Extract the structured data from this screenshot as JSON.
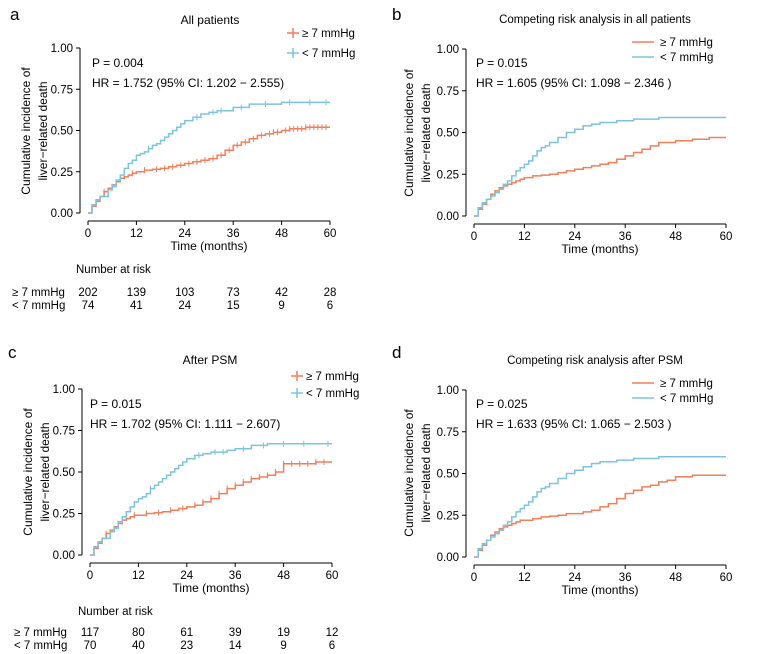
{
  "colors": {
    "high": "#F07F5A",
    "low": "#7EC3DD"
  },
  "risk_header": "Number at risk",
  "chart_data": [
    {
      "panel": "a",
      "type": "line",
      "title": "All patients",
      "xlabel": "Time (months)",
      "ylabel_lines": [
        "Cumulative incidence of",
        "liver−related death"
      ],
      "xlim": [
        0,
        60
      ],
      "ylim": [
        0,
        1
      ],
      "xticks": [
        "0",
        "12",
        "24",
        "36",
        "48",
        "60"
      ],
      "yticks": [
        "0.00",
        "0.25",
        "0.50",
        "0.75",
        "1.00"
      ],
      "p_text": "P = 0.004",
      "hr_text": "HR = 1.752  (95% CI: 1.202 − 2.555)",
      "legend_style": "marker",
      "legend_position": "top-right",
      "series": [
        {
          "name": "≥ 7 mmHg",
          "color_key": "high",
          "x": [
            0,
            1,
            2,
            3,
            4,
            5,
            6,
            7,
            8,
            9,
            10,
            11,
            12,
            14,
            16,
            18,
            20,
            22,
            24,
            26,
            28,
            30,
            32,
            34,
            36,
            38,
            40,
            42,
            44,
            46,
            48,
            50,
            52,
            54,
            56,
            58,
            60
          ],
          "y": [
            0,
            0.04,
            0.07,
            0.1,
            0.13,
            0.15,
            0.17,
            0.19,
            0.21,
            0.22,
            0.23,
            0.24,
            0.25,
            0.26,
            0.265,
            0.27,
            0.28,
            0.29,
            0.3,
            0.31,
            0.32,
            0.33,
            0.35,
            0.38,
            0.41,
            0.43,
            0.45,
            0.47,
            0.48,
            0.49,
            0.5,
            0.51,
            0.51,
            0.52,
            0.52,
            0.52,
            0.52
          ],
          "censor_x": [
            4,
            8,
            11,
            14,
            17,
            19,
            21,
            23,
            25,
            27,
            29,
            31,
            33,
            35,
            37,
            39,
            41,
            43,
            45,
            46,
            47,
            49,
            50,
            51,
            52,
            53,
            54,
            55,
            56,
            57,
            58,
            59
          ]
        },
        {
          "name": "< 7 mmHg",
          "color_key": "low",
          "x": [
            0,
            1,
            2,
            3,
            5,
            6,
            7,
            8,
            9,
            10,
            11,
            12,
            13,
            14,
            15,
            16,
            17,
            18,
            19,
            20,
            21,
            22,
            23,
            24,
            26,
            28,
            30,
            32,
            34,
            36,
            40,
            44,
            48,
            52,
            56,
            60
          ],
          "y": [
            0,
            0.05,
            0.08,
            0.1,
            0.14,
            0.16,
            0.2,
            0.23,
            0.27,
            0.3,
            0.32,
            0.35,
            0.36,
            0.37,
            0.39,
            0.41,
            0.42,
            0.44,
            0.46,
            0.48,
            0.5,
            0.52,
            0.54,
            0.56,
            0.58,
            0.6,
            0.61,
            0.62,
            0.62,
            0.64,
            0.66,
            0.66,
            0.67,
            0.67,
            0.67,
            0.67
          ],
          "censor_x": [
            6,
            15,
            27,
            31,
            33,
            38,
            44,
            50,
            55,
            59
          ]
        }
      ],
      "risk_table": [
        {
          "label": "≥ 7 mmHg",
          "values": [
            202,
            139,
            103,
            73,
            42,
            28
          ]
        },
        {
          "label": "< 7 mmHg",
          "values": [
            74,
            41,
            24,
            15,
            9,
            6
          ]
        }
      ]
    },
    {
      "panel": "b",
      "type": "line",
      "title": "Competing risk analysis in all patients",
      "xlabel": "Time (months)",
      "ylabel_lines": [
        "Cumulative incidence of",
        "liver−related death"
      ],
      "xlim": [
        0,
        60
      ],
      "ylim": [
        0,
        1
      ],
      "xticks": [
        "0",
        "12",
        "24",
        "36",
        "48",
        "60"
      ],
      "yticks": [
        "0.00",
        "0.25",
        "0.50",
        "0.75",
        "1.00"
      ],
      "p_text": "P = 0.015",
      "hr_text": "HR = 1.605  (95% CI: 1.098 − 2.346 )",
      "legend_style": "line",
      "legend_position": "top-right",
      "series": [
        {
          "name": "≥ 7 mmHg",
          "color_key": "high",
          "x": [
            0,
            1,
            2,
            3,
            4,
            5,
            6,
            7,
            8,
            9,
            10,
            11,
            12,
            14,
            16,
            18,
            20,
            22,
            24,
            26,
            28,
            30,
            32,
            34,
            36,
            38,
            40,
            42,
            44,
            48,
            52,
            56,
            60
          ],
          "y": [
            0,
            0.04,
            0.07,
            0.1,
            0.13,
            0.15,
            0.17,
            0.18,
            0.19,
            0.2,
            0.21,
            0.22,
            0.23,
            0.24,
            0.245,
            0.25,
            0.26,
            0.27,
            0.28,
            0.29,
            0.3,
            0.31,
            0.32,
            0.34,
            0.36,
            0.38,
            0.4,
            0.42,
            0.44,
            0.45,
            0.46,
            0.47,
            0.47
          ],
          "censor_x": []
        },
        {
          "name": "< 7 mmHg",
          "color_key": "low",
          "x": [
            0,
            1,
            2,
            3,
            4,
            5,
            6,
            7,
            8,
            9,
            10,
            11,
            12,
            13,
            14,
            15,
            16,
            17,
            18,
            20,
            22,
            24,
            26,
            28,
            30,
            34,
            38,
            42,
            44,
            48,
            52,
            56,
            60
          ],
          "y": [
            0,
            0.05,
            0.08,
            0.1,
            0.12,
            0.14,
            0.16,
            0.19,
            0.21,
            0.24,
            0.27,
            0.29,
            0.31,
            0.33,
            0.36,
            0.39,
            0.41,
            0.42,
            0.44,
            0.47,
            0.5,
            0.52,
            0.54,
            0.55,
            0.56,
            0.57,
            0.58,
            0.58,
            0.59,
            0.59,
            0.59,
            0.59,
            0.59
          ],
          "censor_x": []
        }
      ]
    },
    {
      "panel": "c",
      "type": "line",
      "title": "After PSM",
      "xlabel": "Time (months)",
      "ylabel_lines": [
        "Cumulative incidence of",
        "liver−related death"
      ],
      "xlim": [
        0,
        60
      ],
      "ylim": [
        0,
        1
      ],
      "xticks": [
        "0",
        "12",
        "24",
        "36",
        "48",
        "60"
      ],
      "yticks": [
        "0.00",
        "0.25",
        "0.50",
        "0.75",
        "1.00"
      ],
      "p_text": "P = 0.015",
      "hr_text": "HR = 1.702   (95% CI: 1.111 − 2.607)",
      "legend_style": "marker",
      "legend_position": "top-right",
      "series": [
        {
          "name": "≥ 7 mmHg",
          "color_key": "high",
          "x": [
            0,
            1,
            2,
            3,
            4,
            5,
            6,
            7,
            8,
            9,
            10,
            11,
            12,
            14,
            16,
            18,
            20,
            22,
            24,
            26,
            28,
            30,
            32,
            34,
            36,
            38,
            40,
            42,
            44,
            46,
            48,
            52,
            56,
            60
          ],
          "y": [
            0,
            0.04,
            0.07,
            0.1,
            0.13,
            0.15,
            0.17,
            0.19,
            0.21,
            0.22,
            0.23,
            0.24,
            0.24,
            0.25,
            0.255,
            0.26,
            0.27,
            0.28,
            0.29,
            0.3,
            0.32,
            0.34,
            0.37,
            0.4,
            0.42,
            0.44,
            0.46,
            0.47,
            0.48,
            0.5,
            0.55,
            0.55,
            0.56,
            0.56
          ],
          "censor_x": [
            4,
            8,
            11,
            14,
            17,
            20,
            23,
            26,
            28,
            30,
            32,
            34,
            36,
            38,
            40,
            42,
            44,
            46,
            48,
            50,
            52,
            54,
            56,
            58
          ]
        },
        {
          "name": "< 7 mmHg",
          "color_key": "low",
          "x": [
            0,
            1,
            2,
            3,
            5,
            6,
            7,
            8,
            9,
            10,
            11,
            12,
            13,
            14,
            15,
            16,
            17,
            18,
            19,
            20,
            21,
            22,
            23,
            24,
            26,
            28,
            30,
            34,
            36,
            40,
            44,
            48,
            52,
            56,
            60
          ],
          "y": [
            0,
            0.05,
            0.08,
            0.1,
            0.14,
            0.16,
            0.2,
            0.23,
            0.26,
            0.29,
            0.32,
            0.34,
            0.35,
            0.37,
            0.4,
            0.42,
            0.44,
            0.46,
            0.48,
            0.5,
            0.52,
            0.54,
            0.56,
            0.58,
            0.6,
            0.61,
            0.62,
            0.63,
            0.64,
            0.66,
            0.67,
            0.67,
            0.67,
            0.67,
            0.67
          ],
          "censor_x": [
            6,
            15,
            27,
            31,
            33,
            38,
            43,
            48,
            53,
            59
          ]
        }
      ],
      "risk_table": [
        {
          "label": "≥ 7 mmHg",
          "values": [
            117,
            80,
            61,
            39,
            19,
            12
          ]
        },
        {
          "label": "< 7 mmHg",
          "values": [
            70,
            40,
            23,
            14,
            9,
            6
          ]
        }
      ]
    },
    {
      "panel": "d",
      "type": "line",
      "title": "Competing risk analysis after PSM",
      "xlabel": "Time (months)",
      "ylabel_lines": [
        "Cumulative incidence of",
        "liver−related death"
      ],
      "xlim": [
        0,
        60
      ],
      "ylim": [
        0,
        1
      ],
      "xticks": [
        "0",
        "12",
        "24",
        "36",
        "48",
        "60"
      ],
      "yticks": [
        "0.00",
        "0.25",
        "0.50",
        "0.75",
        "1.00"
      ],
      "p_text": "P = 0.025",
      "hr_text": "HR = 1.633  (95% CI: 1.065 − 2.503 )",
      "legend_style": "line",
      "legend_position": "top-right",
      "series": [
        {
          "name": "≥ 7 mmHg",
          "color_key": "high",
          "x": [
            0,
            1,
            2,
            3,
            4,
            5,
            6,
            7,
            8,
            9,
            10,
            11,
            12,
            14,
            16,
            18,
            20,
            22,
            24,
            26,
            28,
            30,
            32,
            34,
            36,
            38,
            40,
            42,
            44,
            46,
            48,
            52,
            56,
            60
          ],
          "y": [
            0,
            0.04,
            0.07,
            0.1,
            0.13,
            0.15,
            0.17,
            0.18,
            0.19,
            0.2,
            0.21,
            0.22,
            0.22,
            0.23,
            0.24,
            0.245,
            0.25,
            0.26,
            0.26,
            0.27,
            0.28,
            0.3,
            0.32,
            0.35,
            0.38,
            0.4,
            0.42,
            0.43,
            0.45,
            0.46,
            0.48,
            0.49,
            0.49,
            0.49
          ],
          "censor_x": []
        },
        {
          "name": "< 7 mmHg",
          "color_key": "low",
          "x": [
            0,
            1,
            2,
            3,
            4,
            5,
            6,
            7,
            8,
            9,
            10,
            11,
            12,
            13,
            14,
            15,
            16,
            17,
            18,
            20,
            22,
            24,
            26,
            28,
            30,
            34,
            38,
            42,
            44,
            48,
            52,
            56,
            60
          ],
          "y": [
            0,
            0.05,
            0.08,
            0.1,
            0.12,
            0.14,
            0.16,
            0.19,
            0.21,
            0.24,
            0.27,
            0.29,
            0.31,
            0.33,
            0.36,
            0.39,
            0.41,
            0.42,
            0.44,
            0.47,
            0.5,
            0.52,
            0.54,
            0.56,
            0.57,
            0.58,
            0.59,
            0.59,
            0.6,
            0.6,
            0.6,
            0.6,
            0.6
          ],
          "censor_x": []
        }
      ]
    }
  ]
}
